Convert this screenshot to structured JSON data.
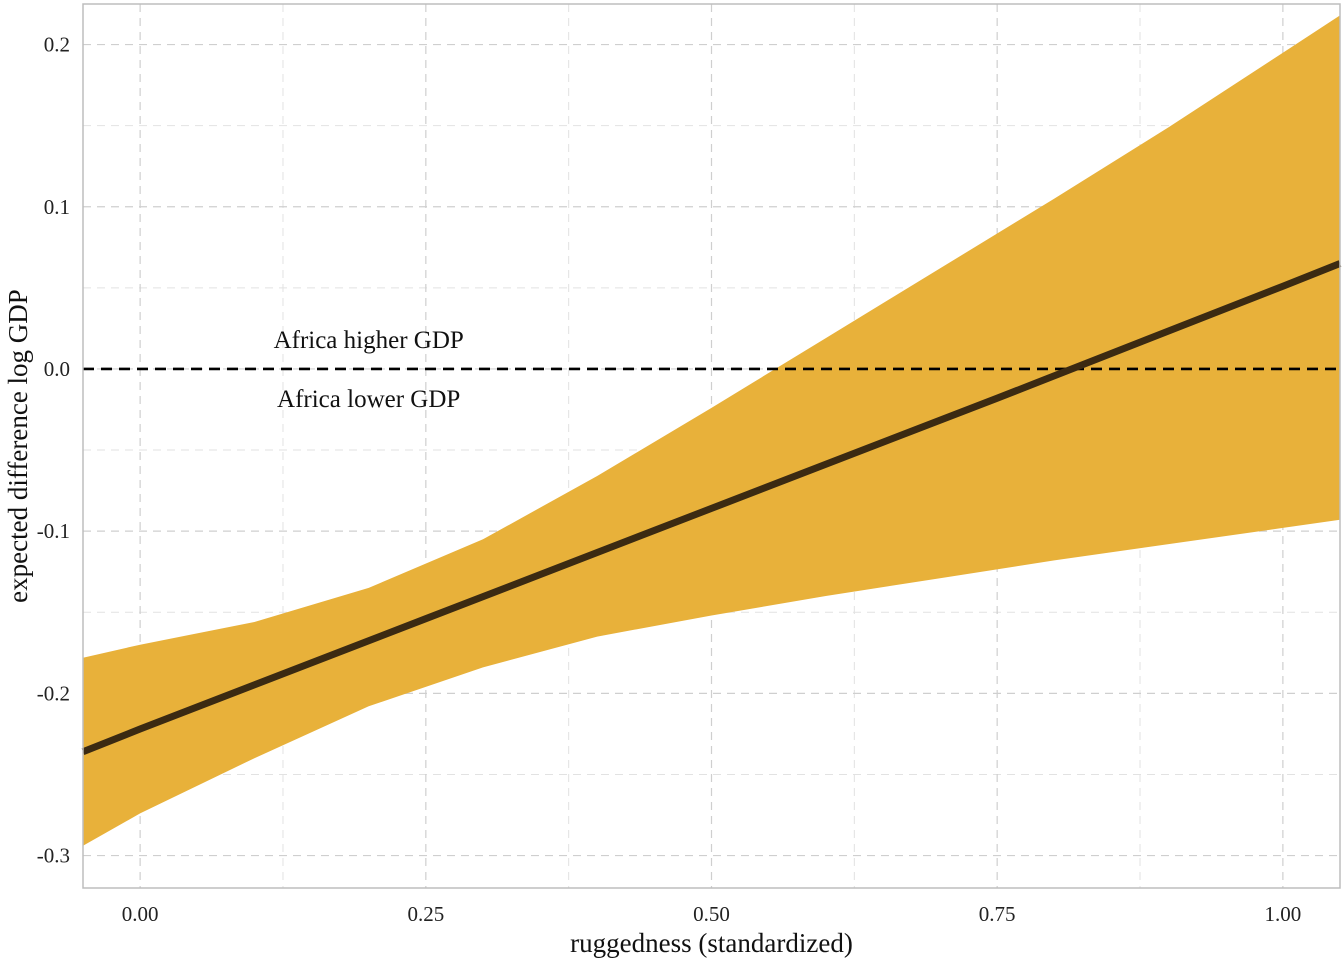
{
  "chart_data": {
    "type": "line",
    "xlabel": "ruggedness (standardized)",
    "ylabel": "expected difference log GDP",
    "xlim": [
      -0.05,
      1.05
    ],
    "ylim": [
      -0.32,
      0.225
    ],
    "x_ticks": [
      0.0,
      0.25,
      0.5,
      0.75,
      1.0
    ],
    "x_tick_labels": [
      "0.00",
      "0.25",
      "0.50",
      "0.75",
      "1.00"
    ],
    "y_ticks": [
      -0.3,
      -0.2,
      -0.1,
      0.0,
      0.1,
      0.2
    ],
    "y_tick_labels": [
      "-0.3",
      "-0.2",
      "-0.1",
      "0.0",
      "0.1",
      "0.2"
    ],
    "grid": true,
    "reference_line": {
      "y": 0.0,
      "style": "dashed",
      "color": "#000000"
    },
    "annotations": [
      {
        "text": "Africa higher GDP",
        "x": 0.2,
        "y": 0.013
      },
      {
        "text": "Africa lower GDP",
        "x": 0.2,
        "y": -0.013
      }
    ],
    "series": [
      {
        "type": "line",
        "color": "#3b2a12",
        "x": [
          -0.05,
          0.0,
          0.25,
          0.5,
          0.75,
          1.0,
          1.05
        ],
        "y": [
          -0.236,
          -0.222,
          -0.154,
          -0.086,
          -0.018,
          0.051,
          0.065
        ]
      },
      {
        "type": "ribbon",
        "color": "#e8b13a",
        "x": [
          -0.05,
          0.0,
          0.1,
          0.2,
          0.3,
          0.4,
          0.5,
          0.6,
          0.7,
          0.8,
          0.9,
          1.0,
          1.05
        ],
        "lower": [
          -0.294,
          -0.274,
          -0.24,
          -0.208,
          -0.184,
          -0.165,
          -0.152,
          -0.14,
          -0.129,
          -0.118,
          -0.108,
          -0.098,
          -0.093
        ],
        "upper": [
          -0.178,
          -0.17,
          -0.156,
          -0.135,
          -0.105,
          -0.066,
          -0.024,
          0.019,
          0.062,
          0.105,
          0.149,
          0.195,
          0.218
        ]
      }
    ]
  }
}
